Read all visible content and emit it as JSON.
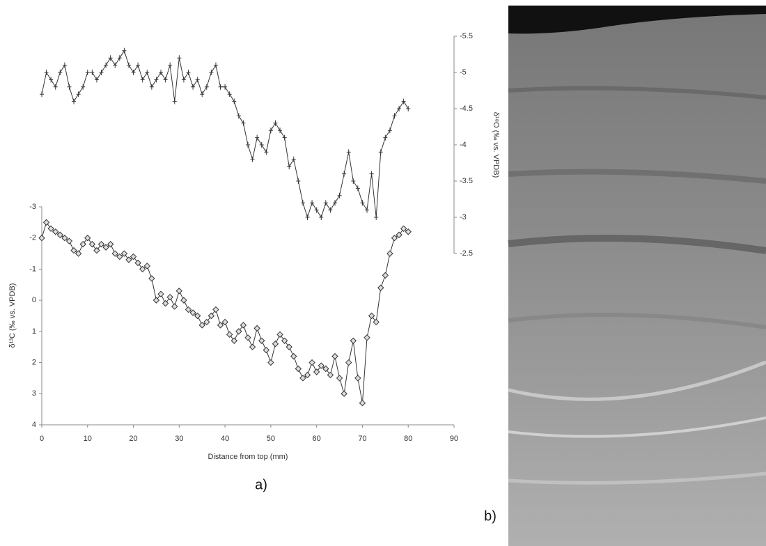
{
  "chart_data": {
    "type": "line",
    "x_label": "Distance from top (mm)",
    "y_label": "δ¹³C (‰ vs. VPDB)",
    "y2_label": "δ¹⁸O (‰ vs. VPDB)",
    "panel_a": "a)",
    "panel_b": "b)",
    "xlim": [
      0,
      90
    ],
    "xticks": [
      0,
      10,
      20,
      30,
      40,
      50,
      60,
      70,
      80,
      90
    ],
    "ylim": [
      4,
      -3
    ],
    "yticks": [
      4,
      3,
      2,
      1,
      0,
      -1,
      -2,
      -3
    ],
    "y2lim": [
      -2.5,
      -5.5
    ],
    "y2ticks": [
      -5.5,
      -5,
      -4.5,
      -4,
      -3.5,
      -3,
      -2.5
    ],
    "x": [
      0,
      1,
      2,
      3,
      4,
      5,
      6,
      7,
      8,
      9,
      10,
      11,
      12,
      13,
      14,
      15,
      16,
      17,
      18,
      19,
      20,
      21,
      22,
      23,
      24,
      25,
      26,
      27,
      28,
      29,
      30,
      31,
      32,
      33,
      34,
      35,
      36,
      37,
      38,
      39,
      40,
      41,
      42,
      43,
      44,
      45,
      46,
      47,
      48,
      49,
      50,
      51,
      52,
      53,
      54,
      55,
      56,
      57,
      58,
      59,
      60,
      61,
      62,
      63,
      64,
      65,
      66,
      67,
      68,
      69,
      70,
      71,
      72,
      73,
      74,
      75,
      76,
      77,
      78,
      79,
      80
    ],
    "series": [
      {
        "color": "#333333",
        "marker": "diamond",
        "values": [
          -2.0,
          -2.5,
          -2.3,
          -2.2,
          -2.1,
          -2.0,
          -1.9,
          -1.6,
          -1.5,
          -1.8,
          -2.0,
          -1.8,
          -1.6,
          -1.8,
          -1.7,
          -1.8,
          -1.5,
          -1.4,
          -1.5,
          -1.3,
          -1.4,
          -1.2,
          -1.0,
          -1.1,
          -0.7,
          0.0,
          -0.2,
          0.1,
          -0.1,
          0.2,
          -0.3,
          0.0,
          0.3,
          0.4,
          0.5,
          0.8,
          0.7,
          0.5,
          0.3,
          0.8,
          0.7,
          1.1,
          1.3,
          1.0,
          0.8,
          1.2,
          1.5,
          0.9,
          1.3,
          1.6,
          2.0,
          1.4,
          1.1,
          1.3,
          1.5,
          1.8,
          2.2,
          2.5,
          2.4,
          2.0,
          2.3,
          2.1,
          2.2,
          2.4,
          1.8,
          2.5,
          3.0,
          2.0,
          1.3,
          2.5,
          3.3,
          1.2,
          0.5,
          0.7,
          -0.4,
          -0.8,
          -1.5,
          -2.0,
          -2.1,
          -2.3,
          -2.2
        ]
      },
      {
        "color": "#333333",
        "marker": "plus",
        "axis": "y2",
        "values": [
          -4.7,
          -5.0,
          -4.9,
          -4.8,
          -5.0,
          -5.1,
          -4.8,
          -4.6,
          -4.7,
          -4.8,
          -5.0,
          -5.0,
          -4.9,
          -5.0,
          -5.1,
          -5.2,
          -5.1,
          -5.2,
          -5.3,
          -5.1,
          -5.0,
          -5.1,
          -4.9,
          -5.0,
          -4.8,
          -4.9,
          -5.0,
          -4.9,
          -5.1,
          -4.6,
          -5.2,
          -4.9,
          -5.0,
          -4.8,
          -4.9,
          -4.7,
          -4.8,
          -5.0,
          -5.1,
          -4.8,
          -4.8,
          -4.7,
          -4.6,
          -4.4,
          -4.3,
          -4.0,
          -3.8,
          -4.1,
          -4.0,
          -3.9,
          -4.2,
          -4.3,
          -4.2,
          -4.1,
          -3.7,
          -3.8,
          -3.5,
          -3.2,
          -3.0,
          -3.2,
          -3.1,
          -3.0,
          -3.2,
          -3.1,
          -3.2,
          -3.3,
          -3.6,
          -3.9,
          -3.5,
          -3.4,
          -3.2,
          -3.1,
          -3.6,
          -3.0,
          -3.9,
          -4.1,
          -4.2,
          -4.4,
          -4.5,
          -4.6,
          -4.5
        ]
      }
    ]
  }
}
